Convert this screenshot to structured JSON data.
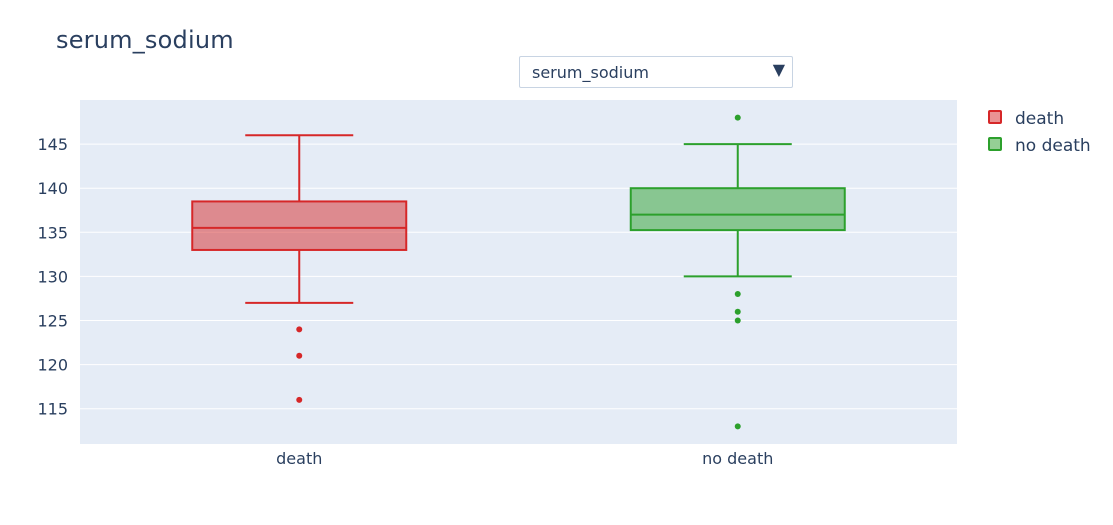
{
  "title": "serum_sodium",
  "dropdown": {
    "selected": "serum_sodium",
    "arrow_icon": "▼"
  },
  "colors": {
    "plot_bg": "#e5ecf6",
    "grid": "#ffffff",
    "death_line": "#d62728",
    "death_fill": "rgba(214,39,40,0.5)",
    "no_death_line": "#2ca02c",
    "no_death_fill": "rgba(44,160,44,0.5)"
  },
  "chart_data": {
    "type": "box",
    "title": "serum_sodium",
    "xlabel": "",
    "ylabel": "",
    "categories": [
      "death",
      "no death"
    ],
    "ylim": [
      111,
      150
    ],
    "y_ticks": [
      115,
      120,
      125,
      130,
      135,
      140,
      145
    ],
    "grid": true,
    "legend_position": "top-right",
    "series": [
      {
        "name": "death",
        "category": "death",
        "color": "#d62728",
        "lowerfence": 127,
        "q1": 133,
        "median": 135.5,
        "q3": 138.5,
        "upperfence": 146,
        "outliers": [
          124,
          121,
          116
        ]
      },
      {
        "name": "no death",
        "category": "no death",
        "color": "#2ca02c",
        "lowerfence": 130,
        "q1": 135.25,
        "median": 137,
        "q3": 140,
        "upperfence": 145,
        "outliers": [
          148,
          128,
          126,
          125,
          113
        ]
      }
    ]
  }
}
